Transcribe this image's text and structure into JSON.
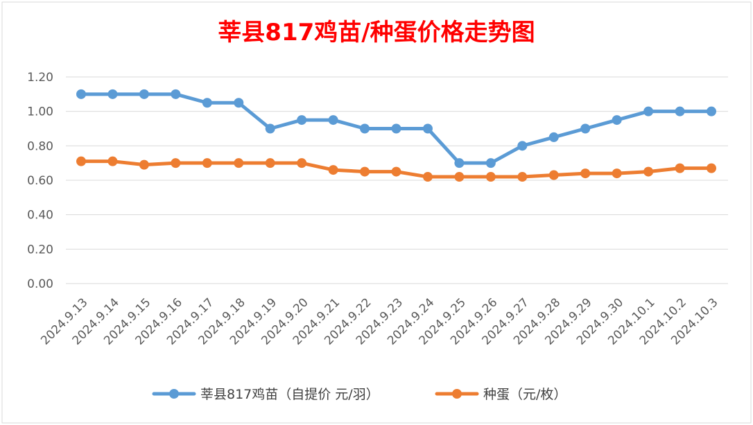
{
  "colors": {
    "title": "#ff0000",
    "series_blue": "#5b9bd5",
    "series_orange": "#ed7d31",
    "grid": "#d9d9d9",
    "tick_text": "#595959"
  },
  "chart_data": {
    "type": "line",
    "title": "莘县817鸡苗/种蛋价格走势图",
    "xlabel": "",
    "ylabel": "",
    "ylim": [
      0,
      1.2
    ],
    "yticks": [
      "0.00",
      "0.20",
      "0.40",
      "0.60",
      "0.80",
      "1.00",
      "1.20"
    ],
    "grid": true,
    "legend_position": "bottom",
    "categories": [
      "2024.9.13",
      "2024.9.14",
      "2024.9.15",
      "2024.9.16",
      "2024.9.17",
      "2024.9.18",
      "2024.9.19",
      "2024.9.20",
      "2024.9.21",
      "2024.9.22",
      "2024.9.23",
      "2024.9.24",
      "2024.9.25",
      "2024.9.26",
      "2024.9.27",
      "2024.9.28",
      "2024.9.29",
      "2024.9.30",
      "2024.10.1",
      "2024.10.2",
      "2024.10.3"
    ],
    "series": [
      {
        "name": "莘县817鸡苗（自提价 元/羽）",
        "color": "#5b9bd5",
        "values": [
          1.1,
          1.1,
          1.1,
          1.1,
          1.05,
          1.05,
          0.9,
          0.95,
          0.95,
          0.9,
          0.9,
          0.9,
          0.7,
          0.7,
          0.8,
          0.85,
          0.9,
          0.95,
          1.0,
          1.0,
          1.0
        ]
      },
      {
        "name": "种蛋（元/枚）",
        "color": "#ed7d31",
        "values": [
          0.71,
          0.71,
          0.69,
          0.7,
          0.7,
          0.7,
          0.7,
          0.7,
          0.66,
          0.65,
          0.65,
          0.62,
          0.62,
          0.62,
          0.62,
          0.63,
          0.64,
          0.64,
          0.65,
          0.67,
          0.67
        ]
      }
    ]
  }
}
